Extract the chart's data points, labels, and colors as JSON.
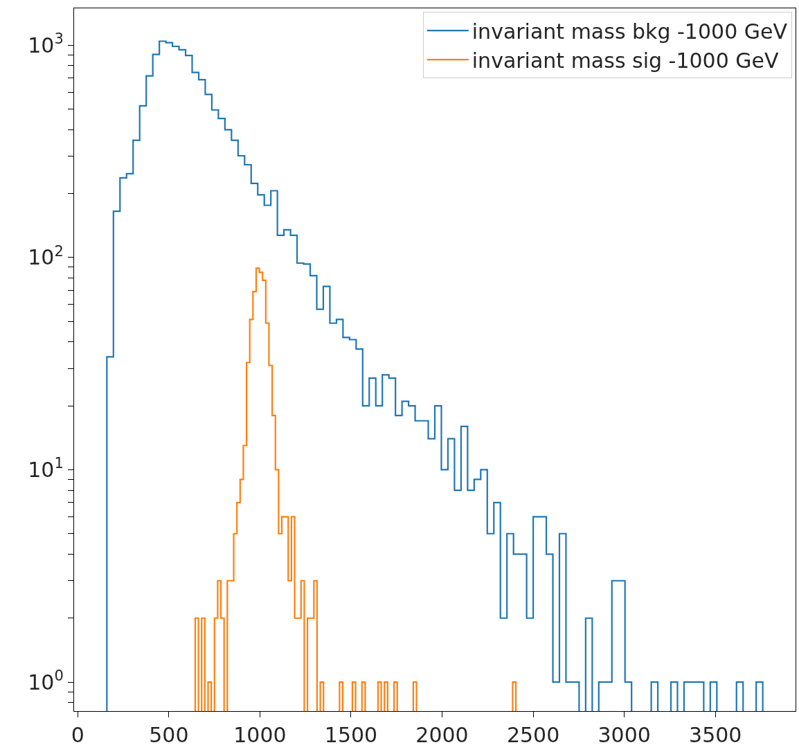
{
  "chart_data": {
    "type": "step",
    "log": "y",
    "grid": false,
    "legend": "top right",
    "xlim": [
      -20,
      3940
    ],
    "xticks": [
      0,
      500,
      1000,
      1500,
      2000,
      2500,
      3000,
      3500
    ],
    "ylim": [
      0.73,
      1490
    ],
    "yticks": [
      {
        "value": 0.8,
        "label": null
      },
      {
        "value": 0.9,
        "label": null
      },
      {
        "value": 1,
        "label": "10$^{0}$"
      },
      {
        "value": 2,
        "label": null
      },
      {
        "value": 3,
        "label": null
      },
      {
        "value": 4,
        "label": null
      },
      {
        "value": 5,
        "label": null
      },
      {
        "value": 6,
        "label": null
      },
      {
        "value": 7,
        "label": null
      },
      {
        "value": 8,
        "label": null
      },
      {
        "value": 9,
        "label": null
      },
      {
        "value": 10,
        "label": "10$^{1}$"
      },
      {
        "value": 20,
        "label": null
      },
      {
        "value": 30,
        "label": null
      },
      {
        "value": 40,
        "label": null
      },
      {
        "value": 50,
        "label": null
      },
      {
        "value": 60,
        "label": null
      },
      {
        "value": 70,
        "label": null
      },
      {
        "value": 80,
        "label": null
      },
      {
        "value": 90,
        "label": null
      },
      {
        "value": 100,
        "label": "10$^{2}$"
      },
      {
        "value": 200,
        "label": null
      },
      {
        "value": 300,
        "label": null
      },
      {
        "value": 400,
        "label": null
      },
      {
        "value": 500,
        "label": null
      },
      {
        "value": 600,
        "label": null
      },
      {
        "value": 700,
        "label": null
      },
      {
        "value": 800,
        "label": null
      },
      {
        "value": 900,
        "label": null
      },
      {
        "value": 1000,
        "label": "10$^{3}$"
      }
    ],
    "series": [
      {
        "name": "invariant mass bkg -1000 GeV",
        "color": "#1f77b4",
        "x": [
          160,
          196,
          232,
          268,
          304,
          340,
          376,
          412,
          448,
          484,
          520,
          556,
          592,
          628,
          664,
          700,
          736,
          772,
          808,
          844,
          880,
          916,
          952,
          988,
          1024,
          1060,
          1096,
          1132,
          1168,
          1204,
          1240,
          1276,
          1312,
          1348,
          1384,
          1420,
          1456,
          1492,
          1528,
          1564,
          1600,
          1636,
          1672,
          1708,
          1744,
          1780,
          1816,
          1852,
          1888,
          1924,
          1960,
          1996,
          2032,
          2068,
          2104,
          2140,
          2176,
          2212,
          2248,
          2284,
          2320,
          2356,
          2392,
          2428,
          2464,
          2500,
          2536,
          2572,
          2608,
          2644,
          2680,
          2716,
          2752,
          2788,
          2824,
          2860,
          2896,
          2932,
          2968,
          3004,
          3040,
          3076,
          3112,
          3148,
          3184,
          3220,
          3256,
          3292,
          3328,
          3364,
          3400,
          3436,
          3472,
          3508,
          3544,
          3580,
          3616,
          3652,
          3688,
          3724,
          3760
        ],
        "values": [
          34,
          165,
          237,
          248,
          356,
          517,
          716,
          904,
          1043,
          1027,
          986,
          950,
          893,
          743,
          687,
          586,
          495,
          451,
          399,
          356,
          301,
          273,
          223,
          197,
          176,
          206,
          127,
          135,
          127,
          94,
          93,
          82,
          57,
          73,
          49,
          51,
          42,
          41,
          37,
          20,
          27,
          20,
          28,
          27,
          18,
          21,
          20,
          17,
          17,
          14,
          20,
          10,
          14,
          8,
          16,
          8,
          9,
          10,
          5,
          7,
          2,
          5,
          4,
          4,
          2,
          6,
          6,
          4,
          1,
          5,
          1,
          1,
          null,
          2,
          null,
          1,
          1,
          3,
          3,
          1,
          null,
          null,
          null,
          1,
          null,
          null,
          1,
          null,
          1,
          1,
          1,
          null,
          1,
          null,
          null,
          null,
          1,
          null,
          null,
          1,
          1
        ]
      },
      {
        "name": "invariant mass sig -1000 GeV",
        "color": "#ff7f0e",
        "x": [
          645,
          662.6,
          680.2,
          697.8,
          715.4,
          733,
          750.6,
          768.2,
          785.8,
          803.4,
          821,
          838.6,
          856.2,
          873.8,
          891.4,
          909,
          926.6,
          944.2,
          961.8,
          979.4,
          997,
          1014.6,
          1032.2,
          1049.8,
          1067.4,
          1085,
          1102.6,
          1120.2,
          1137.8,
          1155.4,
          1173,
          1190.6,
          1208.2,
          1225.8,
          1243.4,
          1261,
          1278.6,
          1296.2,
          1313.8,
          1331.4,
          1349,
          1366.6,
          1384.2,
          1401.8,
          1419.4,
          1437,
          1454.6,
          1472.2,
          1489.8,
          1507.4,
          1525,
          1542.6,
          1560.2,
          1577.8,
          1595.4,
          1613,
          1630.6,
          1648.2,
          1665.8,
          1683.4,
          1701,
          1718.6,
          1736.2,
          1753.8,
          1771.4,
          1789,
          1806.6,
          1824.2,
          1841.8,
          1859.4,
          1877,
          1894.6,
          1912.2,
          1929.8,
          1947.4,
          1965,
          1982.6,
          2000.2,
          2017.8,
          2035.4,
          2053,
          2070.6,
          2088.2,
          2105.8,
          2123.4,
          2141,
          2158.6,
          2176.2,
          2193.8,
          2211.4,
          2229,
          2246.6,
          2264.2,
          2281.8,
          2299.4,
          2317,
          2334.6,
          2352.2,
          2369.8,
          2387.4,
          2405
        ],
        "values": [
          2,
          null,
          2,
          null,
          1,
          null,
          2,
          3,
          2,
          null,
          3,
          3,
          5,
          7,
          9,
          13,
          32,
          51,
          69,
          89,
          85,
          78,
          49,
          31,
          18,
          10,
          5,
          6,
          6,
          3,
          6,
          2,
          2,
          3,
          null,
          2,
          2,
          3,
          null,
          1,
          null,
          null,
          null,
          null,
          null,
          1,
          null,
          null,
          null,
          1,
          null,
          null,
          1,
          null,
          null,
          null,
          null,
          1,
          null,
          1,
          null,
          null,
          1,
          null,
          null,
          null,
          null,
          null,
          1,
          null,
          null,
          null,
          null,
          null,
          null,
          null,
          null,
          null,
          null,
          null,
          null,
          null,
          null,
          null,
          null,
          null,
          null,
          null,
          null,
          null,
          null,
          null,
          null,
          null,
          null,
          null,
          null,
          null,
          null,
          1,
          1
        ]
      }
    ]
  }
}
